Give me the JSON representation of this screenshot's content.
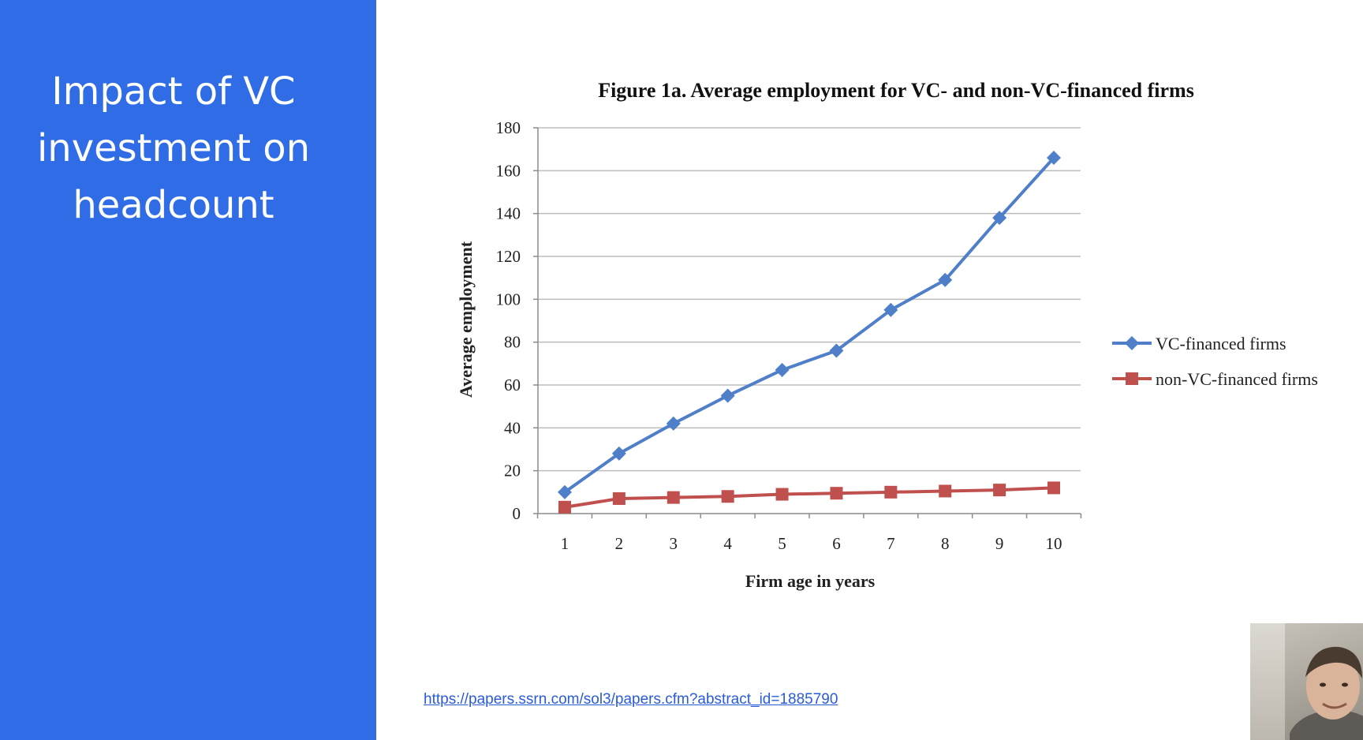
{
  "slide": {
    "title": "Impact of VC investment on headcount",
    "left_panel_color": "#2f6ce6",
    "source_link": "https://papers.ssrn.com/sol3/papers.cfm?abstract_id=1885790"
  },
  "chart_data": {
    "type": "line",
    "title": "Figure 1a.  Average employment for VC- and non-VC-financed firms",
    "xlabel": "Firm age in years",
    "ylabel": "Average employment",
    "x": [
      1,
      2,
      3,
      4,
      5,
      6,
      7,
      8,
      9,
      10
    ],
    "categories": [
      "1",
      "2",
      "3",
      "4",
      "5",
      "6",
      "7",
      "8",
      "9",
      "10"
    ],
    "ylim": [
      0,
      180
    ],
    "yticks": [
      0,
      20,
      40,
      60,
      80,
      100,
      120,
      140,
      160,
      180
    ],
    "grid": true,
    "legend_position": "right",
    "series": [
      {
        "name": "VC-financed firms",
        "color": "#4f7fc9",
        "marker": "diamond",
        "values": [
          10,
          28,
          42,
          55,
          67,
          76,
          95,
          109,
          138,
          166
        ]
      },
      {
        "name": "non-VC-financed firms",
        "color": "#c0504d",
        "marker": "square",
        "values": [
          3,
          7,
          7.5,
          8,
          9,
          9.5,
          10,
          10.5,
          11,
          12
        ]
      }
    ]
  }
}
